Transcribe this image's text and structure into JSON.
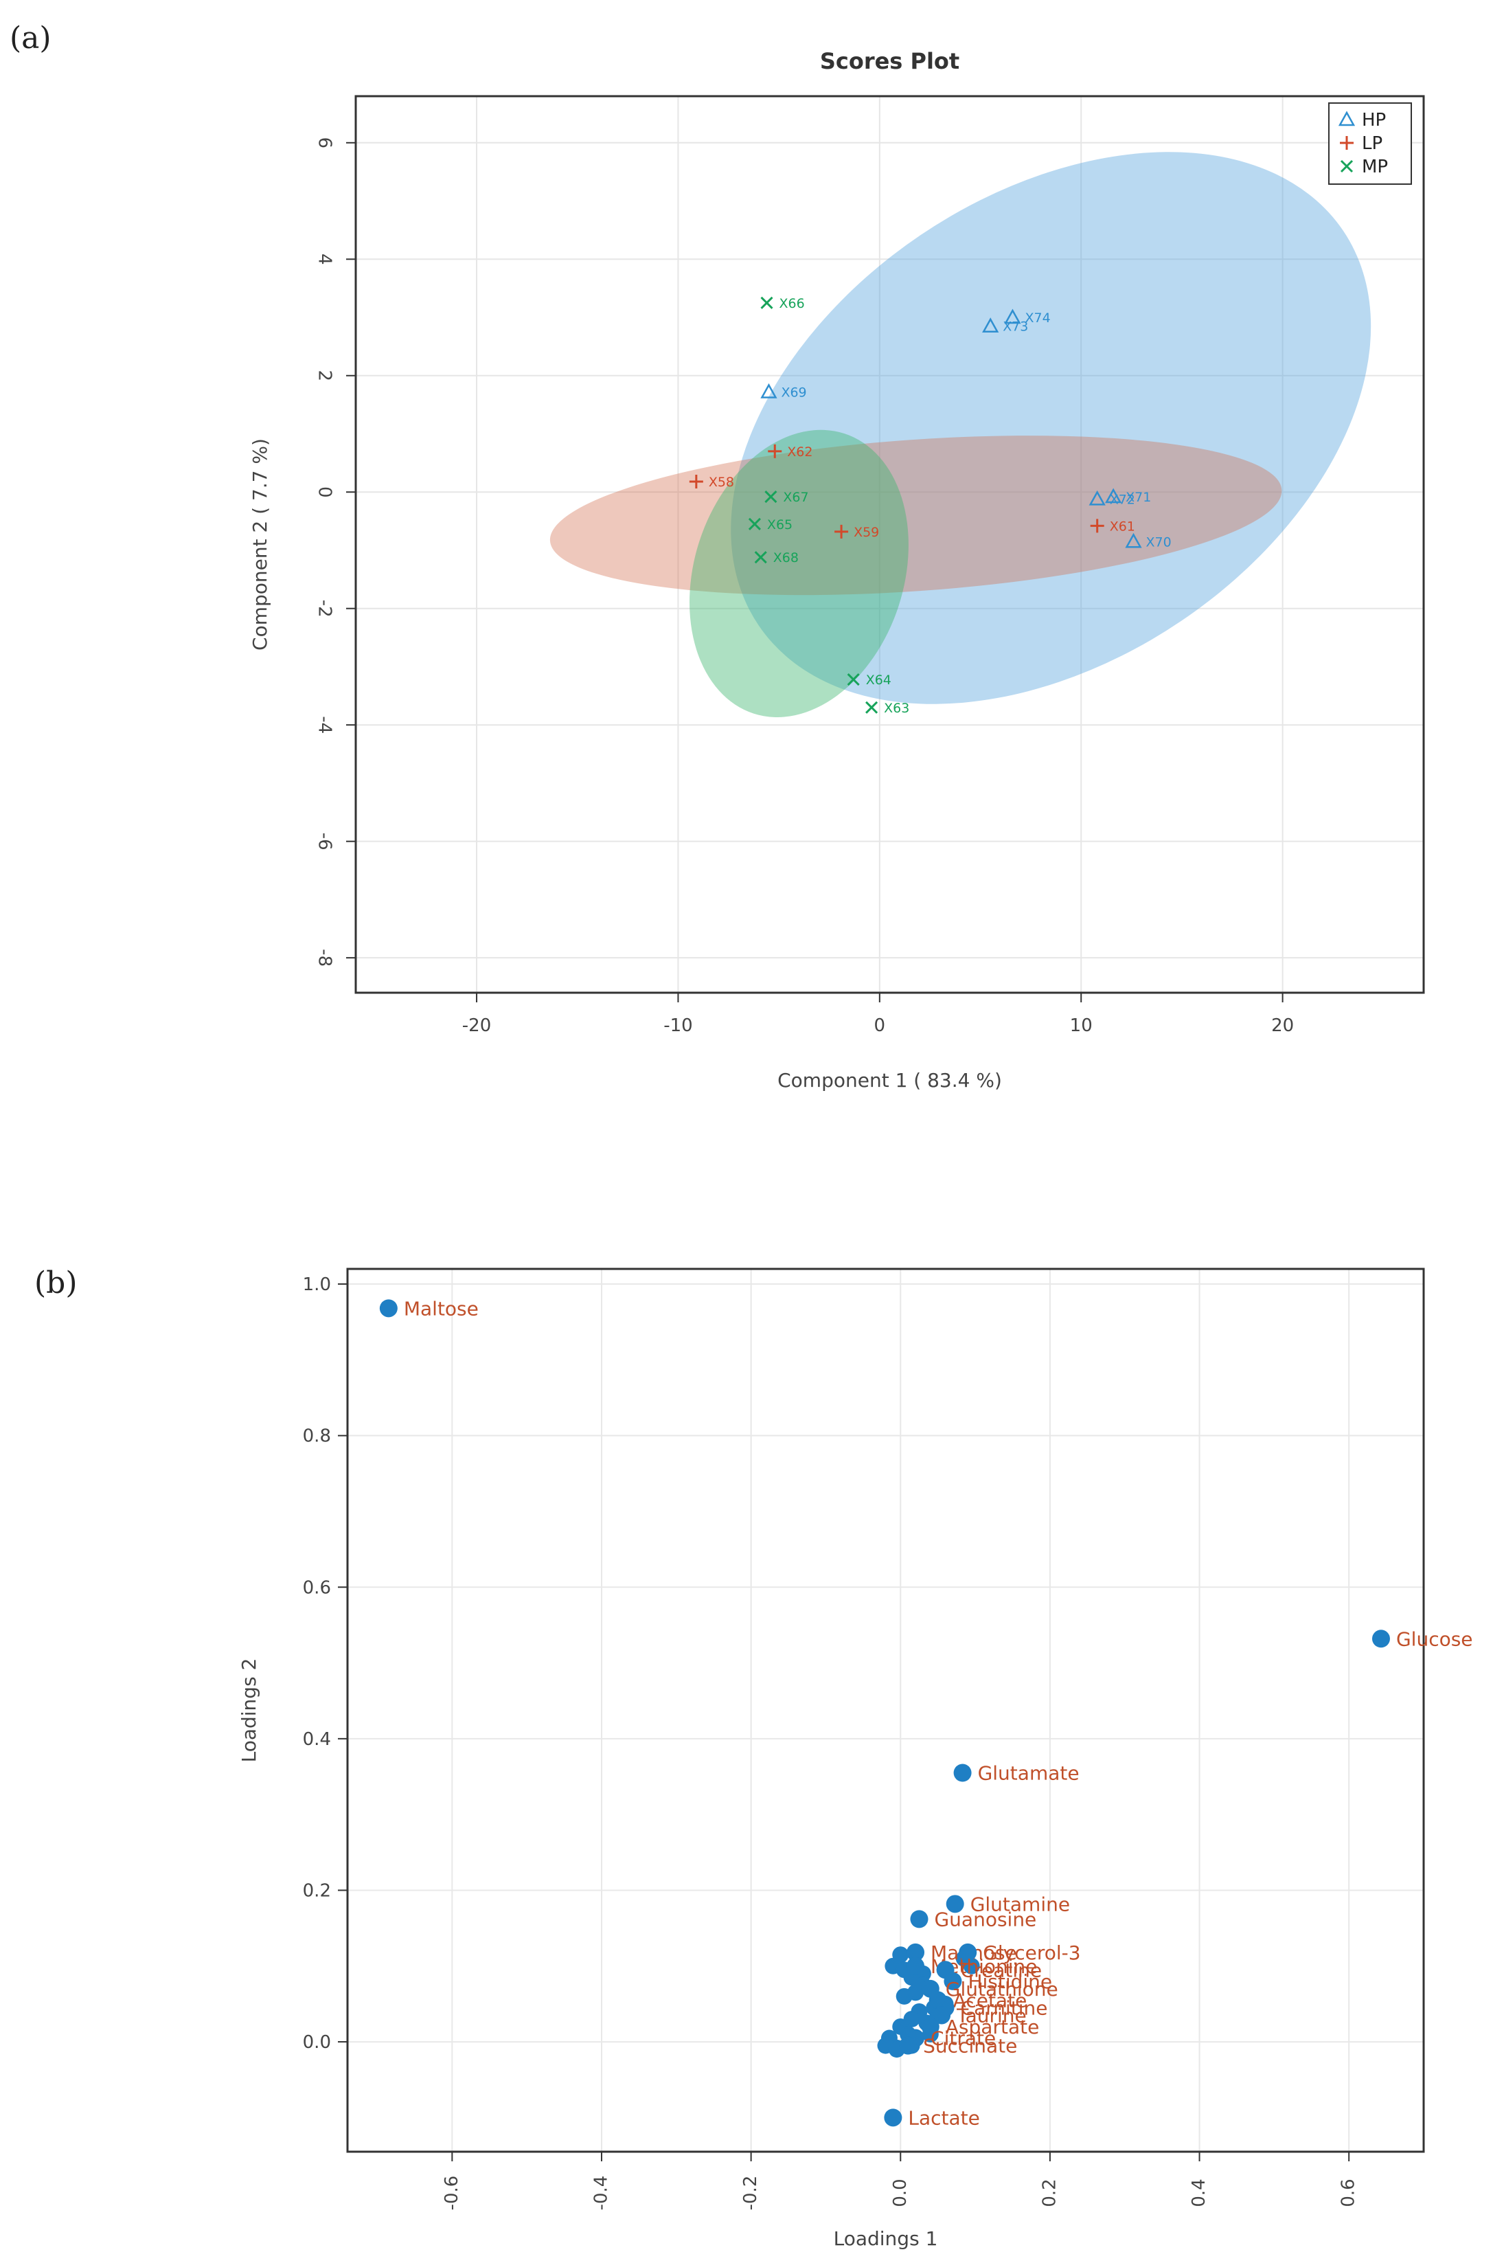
{
  "panel_labels": {
    "a": "(a)",
    "b": "(b)"
  },
  "colors": {
    "HP": "#2f8fd0",
    "LP": "#d2492a",
    "MP": "#17a35a",
    "loading_point": "#1f7fc4",
    "loading_label": "#c0502a"
  },
  "chart_data": [
    {
      "id": "scores",
      "type": "scatter",
      "title": "Scores Plot",
      "xlabel": "Component 1 ( 83.4 %)",
      "ylabel": "Component 2 ( 7.7 %)",
      "xlim": [
        -26,
        27
      ],
      "ylim": [
        -8.6,
        6.8
      ],
      "xticks": [
        -20,
        -10,
        0,
        10,
        20
      ],
      "yticks": [
        6,
        4,
        2,
        0,
        -2,
        -4,
        -6,
        -8
      ],
      "xtick_labels": [
        "-20",
        "-10",
        "0",
        "10",
        "20"
      ],
      "ytick_labels": [
        "6",
        "4",
        "2",
        "0",
        "-2",
        "-4",
        "-6",
        "-8"
      ],
      "grid": true,
      "legend_position": "top-right",
      "legend": [
        {
          "name": "HP",
          "marker": "triangle",
          "symbol": "Δ"
        },
        {
          "name": "LP",
          "marker": "plus",
          "symbol": "+"
        },
        {
          "name": "MP",
          "marker": "cross",
          "symbol": "×"
        }
      ],
      "ellipses": [
        {
          "group": "HP",
          "cx": 8.5,
          "cy": 1.1,
          "rx": 17.5,
          "ry": 4.0,
          "angle_deg": -34
        },
        {
          "group": "LP",
          "cx": 1.8,
          "cy": -0.4,
          "rx": 18.2,
          "ry": 1.3,
          "angle_deg": -4
        },
        {
          "group": "MP",
          "cx": -4.0,
          "cy": -1.4,
          "rx": 7.3,
          "ry": 1.8,
          "angle_deg": -72
        }
      ],
      "series": [
        {
          "name": "HP",
          "marker": "triangle",
          "points": [
            {
              "label": "X73",
              "x": 5.5,
              "y": 2.85
            },
            {
              "label": "X74",
              "x": 6.6,
              "y": 3.0
            },
            {
              "label": "X69",
              "x": -5.5,
              "y": 1.72
            },
            {
              "label": "X72",
              "x": 10.8,
              "y": -0.12
            },
            {
              "label": "X71",
              "x": 11.6,
              "y": -0.08
            },
            {
              "label": "X70",
              "x": 12.6,
              "y": -0.85
            }
          ]
        },
        {
          "name": "LP",
          "marker": "plus",
          "points": [
            {
              "label": "X62",
              "x": -5.2,
              "y": 0.7
            },
            {
              "label": "X58",
              "x": -9.1,
              "y": 0.18
            },
            {
              "label": "X59",
              "x": -1.9,
              "y": -0.68
            },
            {
              "label": "X61",
              "x": 10.8,
              "y": -0.58
            }
          ]
        },
        {
          "name": "MP",
          "marker": "cross",
          "points": [
            {
              "label": "X66",
              "x": -5.6,
              "y": 3.25
            },
            {
              "label": "X67",
              "x": -5.4,
              "y": -0.08
            },
            {
              "label": "X65",
              "x": -6.2,
              "y": -0.55
            },
            {
              "label": "X68",
              "x": -5.9,
              "y": -1.12
            },
            {
              "label": "X64",
              "x": -1.3,
              "y": -3.22
            },
            {
              "label": "X63",
              "x": -0.4,
              "y": -3.7
            }
          ]
        }
      ]
    },
    {
      "id": "loadings",
      "type": "scatter",
      "title": "",
      "xlabel": "Loadings 1",
      "ylabel": "Loadings 2",
      "xlim": [
        -0.74,
        0.7
      ],
      "ylim": [
        -0.145,
        1.02
      ],
      "xticks": [
        -0.6,
        -0.4,
        -0.2,
        0.0,
        0.2,
        0.4,
        0.6
      ],
      "yticks": [
        1.0,
        0.8,
        0.6,
        0.4,
        0.2,
        0.0
      ],
      "xtick_labels": [
        "-0.6",
        "-0.4",
        "-0.2",
        "0.0",
        "0.2",
        "0.4",
        "0.6"
      ],
      "ytick_labels": [
        "1.0",
        "0.8",
        "0.6",
        "0.4",
        "0.2",
        "0.0"
      ],
      "grid": true,
      "labeled_points": [
        {
          "label": "Maltose",
          "x": -0.685,
          "y": 0.968
        },
        {
          "label": "Glucose",
          "x": 0.643,
          "y": 0.532
        },
        {
          "label": "Glutamate",
          "x": 0.083,
          "y": 0.355
        },
        {
          "label": "Glutamine",
          "x": 0.073,
          "y": 0.182
        },
        {
          "label": "Guanosine",
          "x": 0.025,
          "y": 0.162
        },
        {
          "label": "Mannose",
          "x": 0.02,
          "y": 0.118
        },
        {
          "label": "Glycerol-3",
          "x": 0.09,
          "y": 0.118
        },
        {
          "label": "Methionine",
          "x": 0.02,
          "y": 0.1
        },
        {
          "label": "Creatine",
          "x": 0.06,
          "y": 0.095
        },
        {
          "label": "Histidine",
          "x": 0.07,
          "y": 0.08
        },
        {
          "label": "Glutathione",
          "x": 0.04,
          "y": 0.07
        },
        {
          "label": "Acetate",
          "x": 0.05,
          "y": 0.055
        },
        {
          "label": "Carnitine",
          "x": 0.06,
          "y": 0.045
        },
        {
          "label": "Taurine",
          "x": 0.055,
          "y": 0.035
        },
        {
          "label": "Aspartate",
          "x": 0.04,
          "y": 0.02
        },
        {
          "label": "Citrate",
          "x": 0.02,
          "y": 0.005
        },
        {
          "label": "Succinate",
          "x": 0.01,
          "y": -0.005
        },
        {
          "label": "Lactate",
          "x": -0.01,
          "y": -0.1
        }
      ],
      "cluster_points": [
        {
          "x": 0.0,
          "y": 0.115
        },
        {
          "x": -0.01,
          "y": 0.1
        },
        {
          "x": 0.005,
          "y": 0.095
        },
        {
          "x": 0.015,
          "y": 0.085
        },
        {
          "x": 0.03,
          "y": 0.09
        },
        {
          "x": 0.085,
          "y": 0.11
        },
        {
          "x": 0.095,
          "y": 0.1
        },
        {
          "x": 0.02,
          "y": 0.065
        },
        {
          "x": 0.005,
          "y": 0.06
        },
        {
          "x": 0.025,
          "y": 0.04
        },
        {
          "x": 0.015,
          "y": 0.03
        },
        {
          "x": 0.045,
          "y": 0.045
        },
        {
          "x": 0.035,
          "y": 0.025
        },
        {
          "x": 0.0,
          "y": 0.02
        },
        {
          "x": -0.015,
          "y": 0.005
        },
        {
          "x": -0.02,
          "y": -0.005
        },
        {
          "x": -0.005,
          "y": -0.008
        },
        {
          "x": 0.01,
          "y": 0.01
        },
        {
          "x": 0.05,
          "y": 0.035
        },
        {
          "x": 0.06,
          "y": 0.05
        },
        {
          "x": 0.03,
          "y": 0.075
        },
        {
          "x": 0.04,
          "y": 0.01
        },
        {
          "x": -0.005,
          "y": -0.01
        },
        {
          "x": 0.015,
          "y": -0.005
        }
      ]
    }
  ]
}
